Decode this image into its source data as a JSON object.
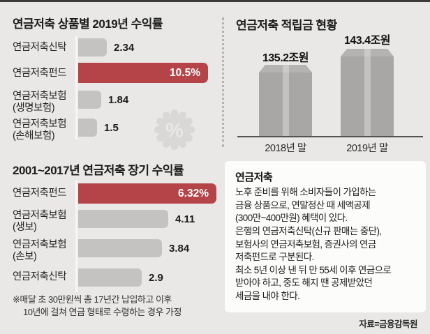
{
  "colors": {
    "background": "#e9e8e7",
    "bar_gray": "#c5c3c2",
    "accent_red": "#b54448",
    "pillar_gray": "#a9a7a5",
    "pillar_stripe": "#c4c2c0",
    "card_background": "#fcfcfb",
    "text": "#1c1c1c"
  },
  "chart_data": [
    {
      "type": "bar",
      "orientation": "horizontal",
      "title": "연금저축 상품별 2019년 수익률",
      "unit": "%",
      "categories": [
        "연금저축신탁",
        "연금저축펀드",
        "연금저축보험\n(생명보험)",
        "연금저축보험\n(손해보험)"
      ],
      "values": [
        2.34,
        10.5,
        1.84,
        1.5
      ],
      "value_labels": [
        "2.34",
        "10.5%",
        "1.84",
        "1.5"
      ],
      "highlight_index": 1,
      "highlight_color": "#b54448",
      "grid": false,
      "legend": "none"
    },
    {
      "type": "bar",
      "orientation": "vertical",
      "title": "연금저축 적립금 현황",
      "unit": "조원",
      "categories": [
        "2018년 말",
        "2019년 말"
      ],
      "values": [
        135.2,
        143.4
      ],
      "value_labels": [
        "135.2조원",
        "143.4조원"
      ],
      "grid": false,
      "legend": "none"
    },
    {
      "type": "bar",
      "orientation": "horizontal",
      "title": "2001~2017년 연금저축 장기 수익률",
      "unit": "%",
      "categories": [
        "연금저축펀드",
        "연금저축보험\n(생보)",
        "연금저축보험\n(손보)",
        "연금저축신탁"
      ],
      "values": [
        6.32,
        4.11,
        3.84,
        2.9
      ],
      "value_labels": [
        "6.32%",
        "4.11",
        "3.84",
        "2.9"
      ],
      "highlight_index": 0,
      "highlight_color": "#b54448",
      "note": "※매달 초 30만원씩 총 17년간 납입하고 이후\n10년에 걸쳐 연금 형태로 수령하는 경우 가정",
      "grid": false,
      "legend": "none"
    }
  ],
  "info_card": {
    "title": "연금저축",
    "body": "노후 준비를 위해 소비자들이 가입하는\n금융 상품으로, 연말정산 때 세액공제\n(300만~400만원) 혜택이 있다.\n은행의 연금저축신탁(신규 판매는 중단),\n보험사의 연금저축보험, 증권사의 연금\n저축펀드로 구분된다.\n최소 5년 이상 낸 뒤 만 55세 이후 연금으로\n받아야 하고, 중도 해지 땐 공제받았던\n세금을 내야 한다."
  },
  "source": "자료=금융감독원",
  "badge": {
    "symbol": "%"
  }
}
